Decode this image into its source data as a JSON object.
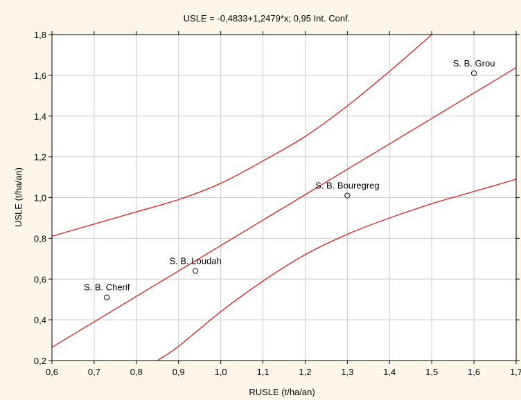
{
  "chart_data": {
    "type": "scatter",
    "title": "USLE = -0,4833+1,2479*x; 0,95 Int. Conf.",
    "xlabel": "RUSLE (t/ha/an)",
    "ylabel": "USLE (t/ha/an)",
    "xlim": [
      0.6,
      1.7
    ],
    "ylim": [
      0.2,
      1.8
    ],
    "x_ticks": [
      0.6,
      0.7,
      0.8,
      0.9,
      1.0,
      1.1,
      1.2,
      1.3,
      1.4,
      1.5,
      1.6,
      1.7
    ],
    "x_tick_labels": [
      "0,6",
      "0,7",
      "0,8",
      "0,9",
      "1,0",
      "1,1",
      "1,2",
      "1,3",
      "1,4",
      "1,5",
      "1,6",
      "1,7"
    ],
    "y_ticks": [
      0.2,
      0.4,
      0.6,
      0.8,
      1.0,
      1.2,
      1.4,
      1.6,
      1.8
    ],
    "y_tick_labels": [
      "0,2",
      "0,4",
      "0,6",
      "0,8",
      "1,0",
      "1,2",
      "1,4",
      "1,6",
      "1,8"
    ],
    "grid": true,
    "points": [
      {
        "label": "S. B. Cherif",
        "x": 0.73,
        "y": 0.51
      },
      {
        "label": "S. B. Loudah",
        "x": 0.94,
        "y": 0.64
      },
      {
        "label": "S. B. Bouregreg",
        "x": 1.3,
        "y": 1.01
      },
      {
        "label": "S. B. Grou",
        "x": 1.6,
        "y": 1.61
      }
    ],
    "regression": {
      "intercept": -0.4833,
      "slope": 1.2479
    },
    "confidence_band": {
      "level": 0.95,
      "upper": [
        {
          "x": 0.6,
          "y": 0.81
        },
        {
          "x": 0.7,
          "y": 0.87
        },
        {
          "x": 0.8,
          "y": 0.93
        },
        {
          "x": 0.9,
          "y": 0.99
        },
        {
          "x": 1.0,
          "y": 1.07
        },
        {
          "x": 1.1,
          "y": 1.18
        },
        {
          "x": 1.2,
          "y": 1.3
        },
        {
          "x": 1.3,
          "y": 1.45
        },
        {
          "x": 1.4,
          "y": 1.62
        },
        {
          "x": 1.5,
          "y": 1.8
        }
      ],
      "lower": [
        {
          "x": 0.85,
          "y": 0.2
        },
        {
          "x": 0.9,
          "y": 0.27
        },
        {
          "x": 1.0,
          "y": 0.44
        },
        {
          "x": 1.1,
          "y": 0.59
        },
        {
          "x": 1.2,
          "y": 0.72
        },
        {
          "x": 1.3,
          "y": 0.82
        },
        {
          "x": 1.4,
          "y": 0.9
        },
        {
          "x": 1.5,
          "y": 0.97
        },
        {
          "x": 1.6,
          "y": 1.03
        },
        {
          "x": 1.7,
          "y": 1.09
        }
      ]
    },
    "colors": {
      "background": "#fbf6e8",
      "plot_background": "#ffffff",
      "line": "#e0191e",
      "grid": "#c9c9c9",
      "axis": "#000000"
    }
  }
}
